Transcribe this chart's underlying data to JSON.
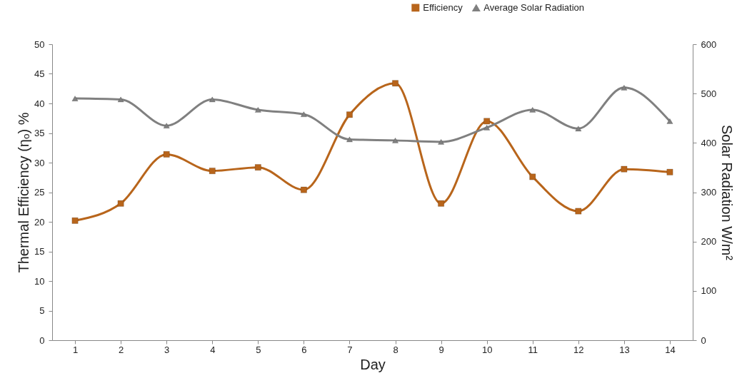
{
  "chart_data": {
    "type": "line",
    "x": [
      1,
      2,
      3,
      4,
      5,
      6,
      7,
      8,
      9,
      10,
      11,
      12,
      13,
      14
    ],
    "xlim": [
      0.5,
      14.5
    ],
    "xticks": [
      1,
      2,
      3,
      4,
      5,
      6,
      7,
      8,
      9,
      10,
      11,
      12,
      13,
      14
    ],
    "xlabel": "Day",
    "ylabel": "Thermal Efficiency (ηₒ) %",
    "y2label": "Solar Radiation W/m²",
    "ylim": [
      0,
      50
    ],
    "yticks": [
      0,
      5,
      10,
      15,
      20,
      25,
      30,
      35,
      40,
      45,
      50
    ],
    "y2lim": [
      0,
      600
    ],
    "y2ticks": [
      0,
      100,
      200,
      300,
      400,
      500,
      600
    ],
    "grid": false,
    "legend": "top right",
    "line_style": "solid",
    "series": [
      {
        "name": "Efficiency",
        "color": "#b8651b",
        "marker": "square",
        "values": [
          20.2,
          23.1,
          31.4,
          28.6,
          29.2,
          25.4,
          38.1,
          43.4,
          23.1,
          37.0,
          27.6,
          21.8,
          28.9,
          28.4
        ]
      },
      {
        "name": "Average Solar Radiation",
        "color": "#808080",
        "marker": "triangle",
        "axis": "y2",
        "values": [
          490,
          488,
          435,
          488,
          467,
          458,
          407,
          405,
          402,
          431,
          467,
          429,
          512,
          444
        ]
      }
    ]
  }
}
